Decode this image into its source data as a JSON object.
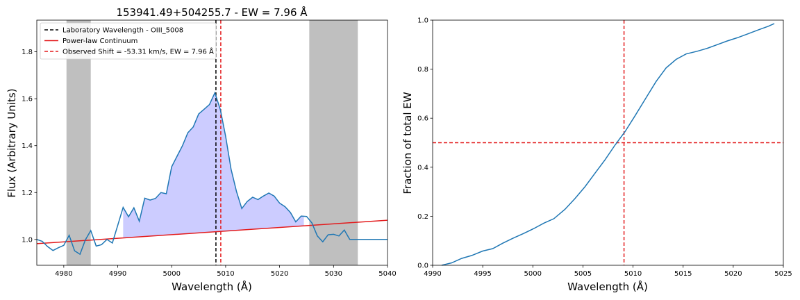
{
  "chart_data": [
    {
      "type": "line",
      "title": "153941.49+504255.7 - EW = 7.96 Å",
      "xlabel": "Wavelength (Å)",
      "ylabel": "Flux (Arbitrary Units)",
      "xlim": [
        4975,
        5040
      ],
      "ylim": [
        0.89,
        1.935
      ],
      "xticks": [
        4980,
        4990,
        5000,
        5010,
        5020,
        5030,
        5040
      ],
      "yticks": [
        1.0,
        1.2,
        1.4,
        1.6,
        1.8
      ],
      "grid": false,
      "legend_position": "upper left",
      "shaded_regions": [
        [
          4980.5,
          4985
        ],
        [
          5025.5,
          5034.5
        ]
      ],
      "vertical_lines": [
        {
          "name": "Laboratory Wavelength - OIII_5008",
          "x": 5008.2,
          "color": "#000000",
          "style": "dashed"
        },
        {
          "name": "Observed Shift = -53.31 km/s, EW = 7.96 Å",
          "x": 5009.1,
          "color": "#e31a1c",
          "style": "dashed"
        }
      ],
      "continuum": {
        "name": "Power-law Continuum",
        "x": [
          4975,
          5040
        ],
        "y": [
          0.982,
          1.082
        ],
        "color": "#e31a1c"
      },
      "fill_range": [
        4991,
        5024.5
      ],
      "series": [
        {
          "x": [
            4975,
            4976,
            4977,
            4978,
            4979,
            4980,
            4981,
            4982,
            4983,
            4984,
            4985,
            4986,
            4987,
            4988,
            4989,
            4990,
            4991,
            4992,
            4993,
            4994,
            4995,
            4996,
            4997,
            4998,
            4999,
            5000,
            5001,
            5002,
            5003,
            5004,
            5005,
            5006,
            5007,
            5008,
            5009,
            5010,
            5011,
            5012,
            5013,
            5014,
            5015,
            5016,
            5017,
            5018,
            5019,
            5020,
            5021,
            5022,
            5023,
            5024,
            5025,
            5026,
            5027,
            5028,
            5029,
            5030,
            5031,
            5032,
            5033,
            5034,
            5035,
            5036,
            5037,
            5038,
            5039,
            5040
          ],
          "y": [
            1.0,
            0.992,
            0.97,
            0.953,
            0.965,
            0.975,
            1.018,
            0.952,
            0.937,
            0.998,
            1.038,
            0.972,
            0.978,
            1.0,
            0.985,
            1.06,
            1.137,
            1.097,
            1.135,
            1.078,
            1.176,
            1.168,
            1.175,
            1.2,
            1.195,
            1.31,
            1.355,
            1.4,
            1.455,
            1.48,
            1.535,
            1.555,
            1.575,
            1.625,
            1.555,
            1.44,
            1.3,
            1.205,
            1.132,
            1.162,
            1.18,
            1.17,
            1.185,
            1.198,
            1.185,
            1.155,
            1.14,
            1.115,
            1.075,
            1.1,
            1.098,
            1.07,
            1.015,
            0.99,
            1.02,
            1.022,
            1.015,
            1.04,
            1.0,
            1.0,
            1.0,
            1.0,
            1.0,
            1.0,
            1.0,
            1.0
          ],
          "color": "#1f77b4"
        }
      ],
      "legend": [
        {
          "label": "Laboratory Wavelength - OIII_5008",
          "color": "#000000",
          "style": "dashed"
        },
        {
          "label": "Power-law Continuum",
          "color": "#e31a1c",
          "style": "solid"
        },
        {
          "label": "Observed Shift = -53.31 km/s, EW = 7.96 Å",
          "color": "#e31a1c",
          "style": "dashed"
        }
      ]
    },
    {
      "type": "line",
      "title": "",
      "xlabel": "Wavelength (Å)",
      "ylabel": "Fraction of total EW",
      "xlim": [
        4990,
        5025
      ],
      "ylim": [
        0.0,
        1.0
      ],
      "xticks": [
        4990,
        4995,
        5000,
        5005,
        5010,
        5015,
        5020,
        5025
      ],
      "yticks": [
        0.0,
        0.2,
        0.4,
        0.6,
        0.8,
        1.0
      ],
      "grid": false,
      "reference_lines": [
        {
          "orientation": "vertical",
          "x": 5009.1,
          "color": "#e31a1c",
          "style": "dashed"
        },
        {
          "orientation": "horizontal",
          "y": 0.5,
          "color": "#e31a1c",
          "style": "dashed"
        }
      ],
      "series": [
        {
          "x": [
            4990.9,
            4991.9,
            4992.9,
            4993.9,
            4995,
            4996,
            4997,
            4998,
            4999.1,
            5000.1,
            5001.1,
            5002.1,
            5003.2,
            5004.2,
            5005.2,
            5006.2,
            5007.2,
            5008.2,
            5009.2,
            5010.2,
            5011.3,
            5012.3,
            5013.3,
            5014.3,
            5015.3,
            5016.4,
            5017.4,
            5018.4,
            5019.4,
            5020.4,
            5021.4,
            5022.5,
            5023.5,
            5024.1
          ],
          "y": [
            0.0,
            0.01,
            0.028,
            0.04,
            0.058,
            0.068,
            0.09,
            0.11,
            0.13,
            0.15,
            0.172,
            0.19,
            0.228,
            0.272,
            0.32,
            0.375,
            0.43,
            0.49,
            0.545,
            0.61,
            0.683,
            0.75,
            0.805,
            0.84,
            0.862,
            0.873,
            0.885,
            0.9,
            0.915,
            0.928,
            0.943,
            0.96,
            0.975,
            0.986
          ],
          "color": "#1f77b4"
        }
      ]
    }
  ]
}
